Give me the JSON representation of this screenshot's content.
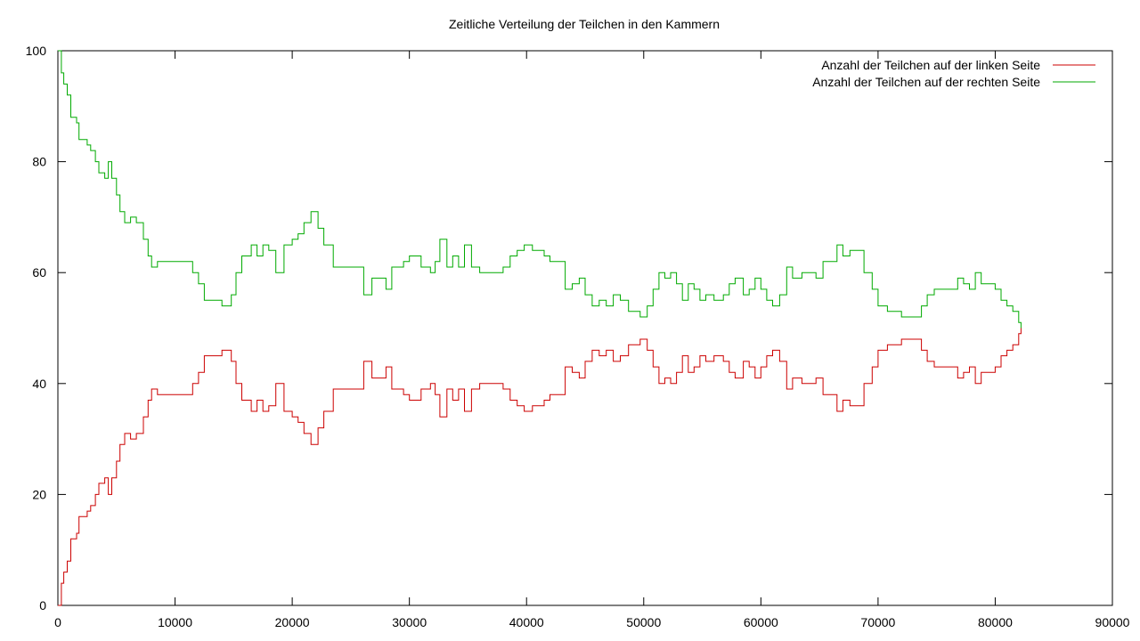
{
  "chart_data": {
    "type": "line",
    "title": "Zeitliche Verteilung der Teilchen in den Kammern",
    "xlabel": "",
    "ylabel": "",
    "xlim": [
      0,
      90000
    ],
    "ylim": [
      0,
      100
    ],
    "x_ticks": [
      0,
      10000,
      20000,
      30000,
      40000,
      50000,
      60000,
      70000,
      80000,
      90000
    ],
    "y_ticks": [
      0,
      20,
      40,
      60,
      80,
      100
    ],
    "grid": false,
    "legend_position": "top-right",
    "series": [
      {
        "name": "Anzahl der Teilchen auf der linken Seite",
        "color": "#cc0000",
        "points": [
          [
            0,
            0
          ],
          [
            300,
            4
          ],
          [
            500,
            6
          ],
          [
            800,
            8
          ],
          [
            1100,
            12
          ],
          [
            1600,
            13
          ],
          [
            1800,
            16
          ],
          [
            2500,
            17
          ],
          [
            2800,
            18
          ],
          [
            3200,
            20
          ],
          [
            3500,
            22
          ],
          [
            4000,
            23
          ],
          [
            4300,
            20
          ],
          [
            4600,
            23
          ],
          [
            5000,
            26
          ],
          [
            5300,
            29
          ],
          [
            5700,
            31
          ],
          [
            6200,
            30
          ],
          [
            6700,
            31
          ],
          [
            7300,
            34
          ],
          [
            7700,
            37
          ],
          [
            8000,
            39
          ],
          [
            8500,
            38
          ],
          [
            9500,
            38
          ],
          [
            10500,
            38
          ],
          [
            11500,
            40
          ],
          [
            12000,
            42
          ],
          [
            12500,
            45
          ],
          [
            13500,
            45
          ],
          [
            14000,
            46
          ],
          [
            14800,
            44
          ],
          [
            15200,
            40
          ],
          [
            15700,
            37
          ],
          [
            16500,
            35
          ],
          [
            17000,
            37
          ],
          [
            17500,
            35
          ],
          [
            18000,
            36
          ],
          [
            18600,
            40
          ],
          [
            19300,
            35
          ],
          [
            20000,
            34
          ],
          [
            20500,
            33
          ],
          [
            21000,
            31
          ],
          [
            21600,
            29
          ],
          [
            22200,
            32
          ],
          [
            22700,
            35
          ],
          [
            23500,
            39
          ],
          [
            24500,
            39
          ],
          [
            25500,
            39
          ],
          [
            26100,
            44
          ],
          [
            26800,
            41
          ],
          [
            27500,
            41
          ],
          [
            28000,
            43
          ],
          [
            28500,
            39
          ],
          [
            29500,
            38
          ],
          [
            30000,
            37
          ],
          [
            30500,
            37
          ],
          [
            31000,
            39
          ],
          [
            31800,
            40
          ],
          [
            32200,
            38
          ],
          [
            32600,
            34
          ],
          [
            33200,
            39
          ],
          [
            33700,
            37
          ],
          [
            34200,
            39
          ],
          [
            34700,
            35
          ],
          [
            35300,
            39
          ],
          [
            36000,
            40
          ],
          [
            37000,
            40
          ],
          [
            38000,
            39
          ],
          [
            38600,
            37
          ],
          [
            39200,
            36
          ],
          [
            39800,
            35
          ],
          [
            40500,
            36
          ],
          [
            41500,
            37
          ],
          [
            42000,
            38
          ],
          [
            42800,
            38
          ],
          [
            43300,
            43
          ],
          [
            43900,
            42
          ],
          [
            44500,
            41
          ],
          [
            45000,
            44
          ],
          [
            45600,
            46
          ],
          [
            46200,
            45
          ],
          [
            46800,
            46
          ],
          [
            47400,
            44
          ],
          [
            48000,
            45
          ],
          [
            48700,
            47
          ],
          [
            49300,
            47
          ],
          [
            49700,
            48
          ],
          [
            50300,
            46
          ],
          [
            50800,
            43
          ],
          [
            51300,
            40
          ],
          [
            51800,
            41
          ],
          [
            52300,
            40
          ],
          [
            52800,
            42
          ],
          [
            53300,
            45
          ],
          [
            53800,
            42
          ],
          [
            54300,
            43
          ],
          [
            54800,
            45
          ],
          [
            55300,
            44
          ],
          [
            56000,
            45
          ],
          [
            56800,
            44
          ],
          [
            57300,
            42
          ],
          [
            57800,
            41
          ],
          [
            58500,
            44
          ],
          [
            59000,
            43
          ],
          [
            59500,
            41
          ],
          [
            60000,
            43
          ],
          [
            60500,
            45
          ],
          [
            61000,
            46
          ],
          [
            61600,
            44
          ],
          [
            62200,
            39
          ],
          [
            62700,
            41
          ],
          [
            63500,
            40
          ],
          [
            64300,
            40
          ],
          [
            64700,
            41
          ],
          [
            65300,
            38
          ],
          [
            65900,
            38
          ],
          [
            66500,
            35
          ],
          [
            67000,
            37
          ],
          [
            67600,
            36
          ],
          [
            68200,
            36
          ],
          [
            68800,
            40
          ],
          [
            69500,
            43
          ],
          [
            70000,
            46
          ],
          [
            70800,
            47
          ],
          [
            71500,
            47
          ],
          [
            72000,
            48
          ],
          [
            73000,
            48
          ],
          [
            73700,
            46
          ],
          [
            74200,
            44
          ],
          [
            74800,
            43
          ],
          [
            75500,
            43
          ],
          [
            76300,
            43
          ],
          [
            76800,
            41
          ],
          [
            77300,
            42
          ],
          [
            77800,
            43
          ],
          [
            78300,
            40
          ],
          [
            78800,
            42
          ],
          [
            79500,
            42
          ],
          [
            80000,
            43
          ],
          [
            80500,
            45
          ],
          [
            81000,
            46
          ],
          [
            81500,
            47
          ],
          [
            82000,
            49
          ],
          [
            82200,
            50
          ]
        ]
      },
      {
        "name": "Anzahl der Teilchen auf der rechten Seite",
        "color": "#00aa00",
        "points": [
          [
            0,
            100
          ],
          [
            300,
            96
          ],
          [
            500,
            94
          ],
          [
            800,
            92
          ],
          [
            1100,
            88
          ],
          [
            1600,
            87
          ],
          [
            1800,
            84
          ],
          [
            2500,
            83
          ],
          [
            2800,
            82
          ],
          [
            3200,
            80
          ],
          [
            3500,
            78
          ],
          [
            4000,
            77
          ],
          [
            4300,
            80
          ],
          [
            4600,
            77
          ],
          [
            5000,
            74
          ],
          [
            5300,
            71
          ],
          [
            5700,
            69
          ],
          [
            6200,
            70
          ],
          [
            6700,
            69
          ],
          [
            7300,
            66
          ],
          [
            7700,
            63
          ],
          [
            8000,
            61
          ],
          [
            8500,
            62
          ],
          [
            9500,
            62
          ],
          [
            10500,
            62
          ],
          [
            11500,
            60
          ],
          [
            12000,
            58
          ],
          [
            12500,
            55
          ],
          [
            13500,
            55
          ],
          [
            14000,
            54
          ],
          [
            14800,
            56
          ],
          [
            15200,
            60
          ],
          [
            15700,
            63
          ],
          [
            16500,
            65
          ],
          [
            17000,
            63
          ],
          [
            17500,
            65
          ],
          [
            18000,
            64
          ],
          [
            18600,
            60
          ],
          [
            19300,
            65
          ],
          [
            20000,
            66
          ],
          [
            20500,
            67
          ],
          [
            21000,
            69
          ],
          [
            21600,
            71
          ],
          [
            22200,
            68
          ],
          [
            22700,
            65
          ],
          [
            23500,
            61
          ],
          [
            24500,
            61
          ],
          [
            25500,
            61
          ],
          [
            26100,
            56
          ],
          [
            26800,
            59
          ],
          [
            27500,
            59
          ],
          [
            28000,
            57
          ],
          [
            28500,
            61
          ],
          [
            29500,
            62
          ],
          [
            30000,
            63
          ],
          [
            30500,
            63
          ],
          [
            31000,
            61
          ],
          [
            31800,
            60
          ],
          [
            32200,
            62
          ],
          [
            32600,
            66
          ],
          [
            33200,
            61
          ],
          [
            33700,
            63
          ],
          [
            34200,
            61
          ],
          [
            34700,
            65
          ],
          [
            35300,
            61
          ],
          [
            36000,
            60
          ],
          [
            37000,
            60
          ],
          [
            38000,
            61
          ],
          [
            38600,
            63
          ],
          [
            39200,
            64
          ],
          [
            39800,
            65
          ],
          [
            40500,
            64
          ],
          [
            41500,
            63
          ],
          [
            42000,
            62
          ],
          [
            42800,
            62
          ],
          [
            43300,
            57
          ],
          [
            43900,
            58
          ],
          [
            44500,
            59
          ],
          [
            45000,
            56
          ],
          [
            45600,
            54
          ],
          [
            46200,
            55
          ],
          [
            46800,
            54
          ],
          [
            47400,
            56
          ],
          [
            48000,
            55
          ],
          [
            48700,
            53
          ],
          [
            49300,
            53
          ],
          [
            49700,
            52
          ],
          [
            50300,
            54
          ],
          [
            50800,
            57
          ],
          [
            51300,
            60
          ],
          [
            51800,
            59
          ],
          [
            52300,
            60
          ],
          [
            52800,
            58
          ],
          [
            53300,
            55
          ],
          [
            53800,
            58
          ],
          [
            54300,
            57
          ],
          [
            54800,
            55
          ],
          [
            55300,
            56
          ],
          [
            56000,
            55
          ],
          [
            56800,
            56
          ],
          [
            57300,
            58
          ],
          [
            57800,
            59
          ],
          [
            58500,
            56
          ],
          [
            59000,
            57
          ],
          [
            59500,
            59
          ],
          [
            60000,
            57
          ],
          [
            60500,
            55
          ],
          [
            61000,
            54
          ],
          [
            61600,
            56
          ],
          [
            62200,
            61
          ],
          [
            62700,
            59
          ],
          [
            63500,
            60
          ],
          [
            64300,
            60
          ],
          [
            64700,
            59
          ],
          [
            65300,
            62
          ],
          [
            65900,
            62
          ],
          [
            66500,
            65
          ],
          [
            67000,
            63
          ],
          [
            67600,
            64
          ],
          [
            68200,
            64
          ],
          [
            68800,
            60
          ],
          [
            69500,
            57
          ],
          [
            70000,
            54
          ],
          [
            70800,
            53
          ],
          [
            71500,
            53
          ],
          [
            72000,
            52
          ],
          [
            73000,
            52
          ],
          [
            73700,
            54
          ],
          [
            74200,
            56
          ],
          [
            74800,
            57
          ],
          [
            75500,
            57
          ],
          [
            76300,
            57
          ],
          [
            76800,
            59
          ],
          [
            77300,
            58
          ],
          [
            77800,
            57
          ],
          [
            78300,
            60
          ],
          [
            78800,
            58
          ],
          [
            79500,
            58
          ],
          [
            80000,
            57
          ],
          [
            80500,
            55
          ],
          [
            81000,
            54
          ],
          [
            81500,
            53
          ],
          [
            82000,
            51
          ],
          [
            82200,
            50
          ]
        ]
      }
    ]
  }
}
